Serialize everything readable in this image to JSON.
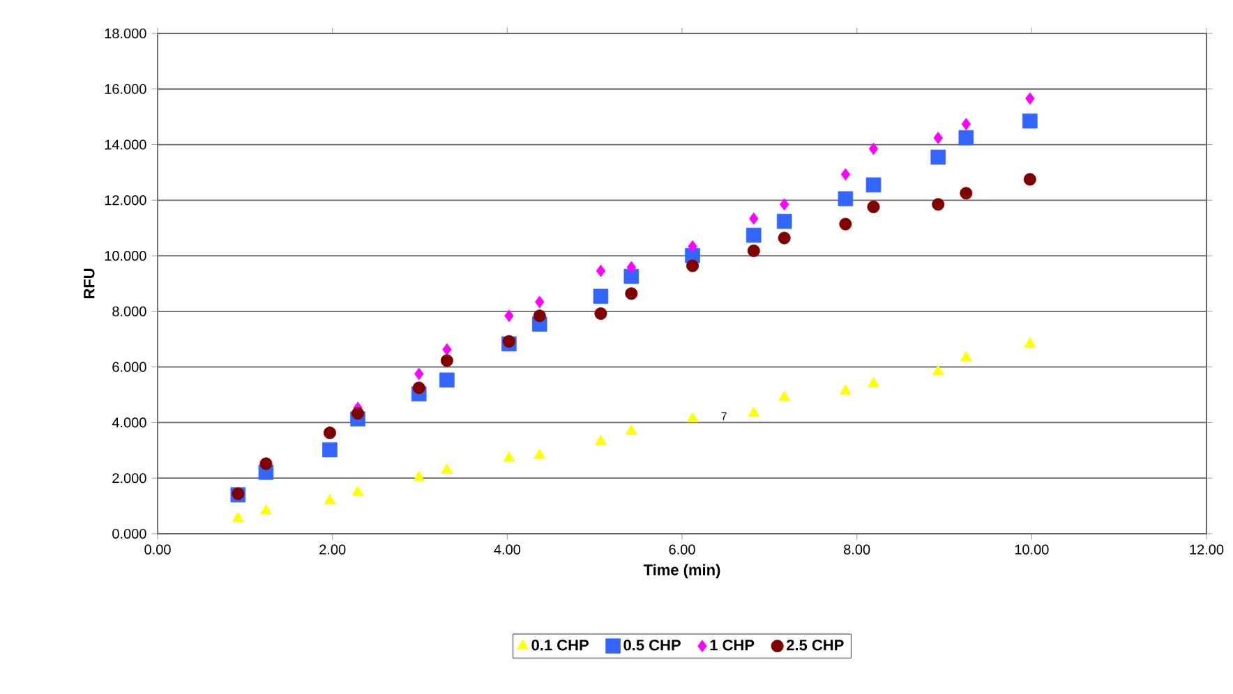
{
  "chart_data": {
    "type": "scatter",
    "xlabel": "Time (min)",
    "ylabel": "RFU",
    "x": [
      0.92,
      1.24,
      1.97,
      2.29,
      2.99,
      3.31,
      4.02,
      4.37,
      5.07,
      5.42,
      6.12,
      6.82,
      7.17,
      7.87,
      8.19,
      8.93,
      9.25,
      9.98
    ],
    "series": [
      {
        "name": "0.1 CHP",
        "color": "#ffff00",
        "marker": "triangle",
        "values": [
          0.55,
          0.82,
          1.19,
          1.49,
          2.02,
          2.29,
          2.72,
          2.82,
          3.32,
          3.69,
          4.13,
          4.33,
          4.91,
          5.13,
          5.4,
          5.83,
          6.33,
          6.83
        ]
      },
      {
        "name": "0.5 CHP",
        "color": "#3366ff",
        "marker": "square",
        "values": [
          1.4,
          2.21,
          3.02,
          4.13,
          5.03,
          5.53,
          6.83,
          7.54,
          8.54,
          9.26,
          10.01,
          10.74,
          11.24,
          12.05,
          12.55,
          13.55,
          14.25,
          14.85
        ]
      },
      {
        "name": "1 CHP",
        "color": "#ff00ff",
        "marker": "diamond",
        "values": [
          null,
          null,
          null,
          4.53,
          5.75,
          6.63,
          7.84,
          8.34,
          9.46,
          9.59,
          10.34,
          11.34,
          11.85,
          12.93,
          13.85,
          14.24,
          14.74,
          15.66
        ]
      },
      {
        "name": "2.5 CHP",
        "color": "#800000",
        "marker": "circle",
        "values": [
          1.44,
          2.52,
          3.63,
          4.33,
          5.25,
          6.23,
          6.92,
          7.84,
          7.92,
          8.64,
          9.64,
          10.18,
          10.64,
          11.14,
          11.76,
          11.85,
          12.25,
          12.75
        ]
      }
    ],
    "xlim": [
      0,
      12
    ],
    "ylim": [
      0,
      18
    ],
    "xticks": [
      {
        "value": 0,
        "label": "0.00"
      },
      {
        "value": 2,
        "label": "2.00"
      },
      {
        "value": 4,
        "label": "4.00"
      },
      {
        "value": 6,
        "label": "6.00"
      },
      {
        "value": 8,
        "label": "8.00"
      },
      {
        "value": 10,
        "label": "10.00"
      },
      {
        "value": 12,
        "label": "12.00"
      }
    ],
    "yticks": [
      {
        "value": 0,
        "label": "0.000"
      },
      {
        "value": 2,
        "label": "2.000"
      },
      {
        "value": 4,
        "label": "4.000"
      },
      {
        "value": 6,
        "label": "6.000"
      },
      {
        "value": 8,
        "label": "8.000"
      },
      {
        "value": 10,
        "label": "10.000"
      },
      {
        "value": 12,
        "label": "12.000"
      },
      {
        "value": 14,
        "label": "14.000"
      },
      {
        "value": 16,
        "label": "16.000"
      },
      {
        "value": 18,
        "label": "18.000"
      }
    ],
    "grid": "y",
    "legend": "bottom",
    "annotations": [
      "7"
    ]
  }
}
